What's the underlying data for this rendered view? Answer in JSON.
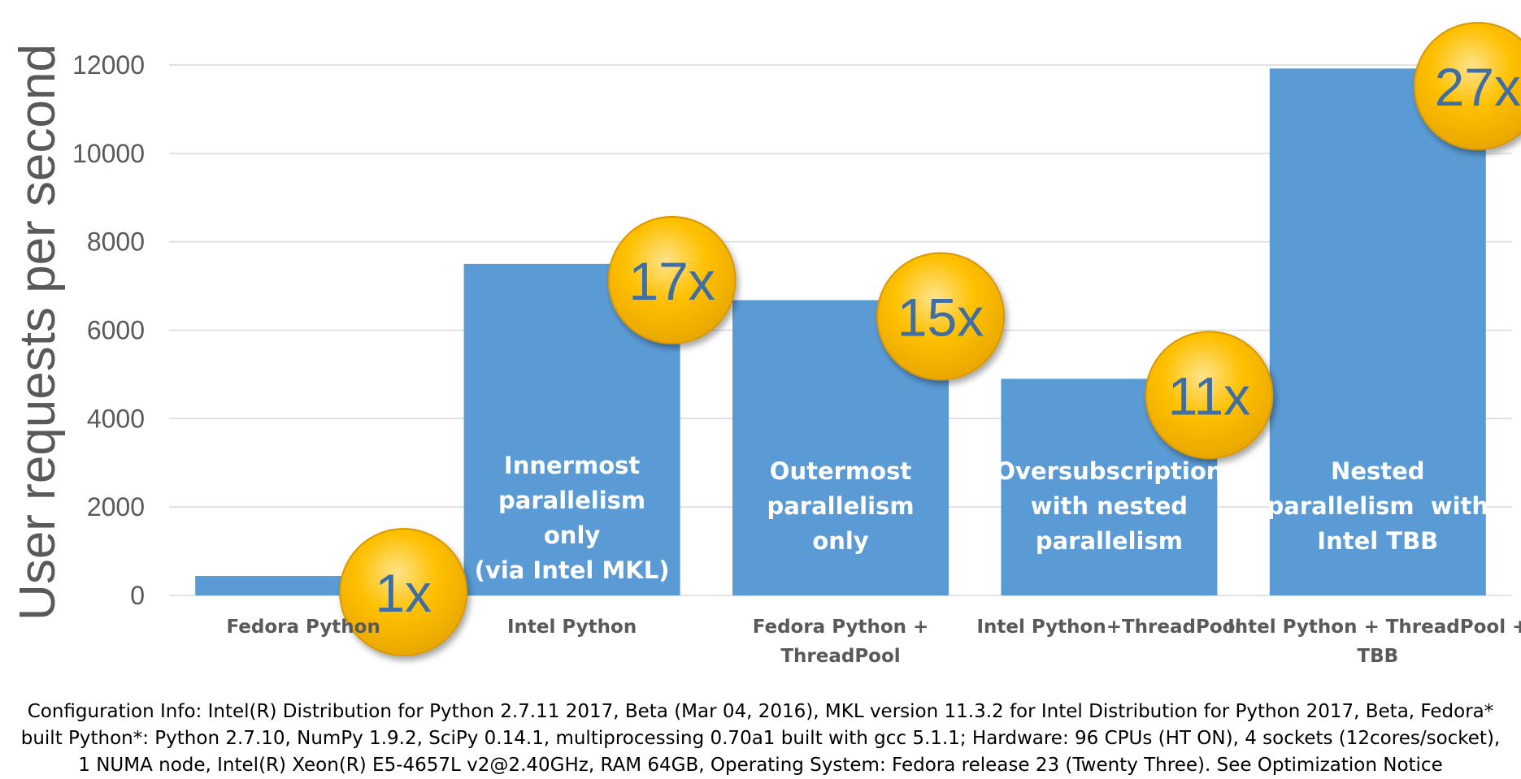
{
  "colors": {
    "bar": "#5b9bd5",
    "axis_text": "#595959",
    "gridline": "#d9d9d9",
    "badge_fill": "#ffc000",
    "badge_text": "#3f6ea5",
    "bar_label": "#ffffff"
  },
  "chart_data": {
    "type": "bar",
    "title": "",
    "xlabel": "",
    "ylabel": "User requests per second",
    "ylim": [
      0,
      12000
    ],
    "yticks": [
      "0",
      "2000",
      "4000",
      "6000",
      "8000",
      "10000",
      "12000"
    ],
    "grid": true,
    "categories": [
      [
        "Fedora Python"
      ],
      [
        "Intel Python"
      ],
      [
        "Fedora Python +",
        "ThreadPool"
      ],
      [
        "Intel Python+ThreadPool"
      ],
      [
        "Intel Python + ThreadPool +",
        "TBB"
      ]
    ],
    "values": [
      440,
      7500,
      6680,
      4900,
      11920
    ],
    "bar_labels": [
      [],
      [
        "Innermost",
        "parallelism",
        "only",
        "(via Intel MKL)"
      ],
      [
        "Outermost",
        "parallelism",
        "only"
      ],
      [
        "Oversubscription",
        "with nested",
        "parallelism"
      ],
      [
        "Nested",
        "parallelism  with",
        "Intel TBB"
      ]
    ],
    "speedups": [
      "1x",
      "17x",
      "15x",
      "11x",
      "27x"
    ]
  },
  "footnote": [
    "Configuration Info: Intel(R) Distribution for Python 2.7.11 2017, Beta (Mar 04, 2016), MKL version 11.3.2 for Intel Distribution for Python 2017, Beta, Fedora*",
    "built Python*: Python 2.7.10, NumPy 1.9.2, SciPy 0.14.1, multiprocessing 0.70a1 built with gcc 5.1.1; Hardware: 96 CPUs (HT ON), 4 sockets (12cores/socket),",
    "1 NUMA node, Intel(R) Xeon(R) E5-4657L v2@2.40GHz, RAM 64GB, Operating System: Fedora release 23 (Twenty Three). See Optimization Notice"
  ]
}
